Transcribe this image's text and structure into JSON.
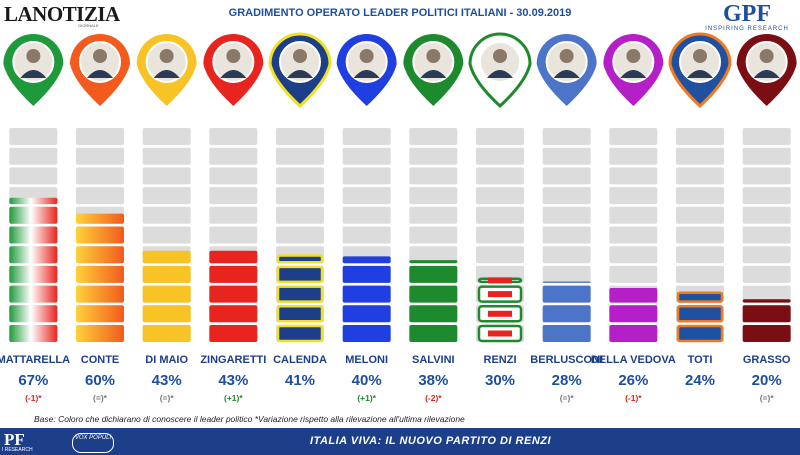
{
  "header": {
    "logo_left_brand": "LANOTIZIA",
    "logo_left_tag": "GIORNALE",
    "title": "GRADIMENTO OPERATO LEADER POLITICI ITALIANI - 30.09.2019",
    "logo_right": "GPF",
    "logo_right_sub": "INSPIRING RESEARCH"
  },
  "chart_data": {
    "type": "bar",
    "title": "GRADIMENTO OPERATO LEADER POLITICI ITALIANI - 30.09.2019",
    "categories": [
      "MATTARELLA",
      "CONTE",
      "DI MAIO",
      "ZINGARETTI",
      "CALENDA",
      "MELONI",
      "SALVINI",
      "RENZI",
      "BERLUSCONI",
      "DELLA VEDOVA",
      "TOTI",
      "GRASSO"
    ],
    "values": [
      67,
      60,
      43,
      43,
      41,
      40,
      38,
      30,
      28,
      26,
      24,
      20
    ],
    "value_labels": [
      "67%",
      "60%",
      "43%",
      "43%",
      "41%",
      "40%",
      "38%",
      "30%",
      "28%",
      "26%",
      "24%",
      "20%"
    ],
    "variations": [
      "(-1)*",
      "(=)*",
      "(=)*",
      "(+1)*",
      "",
      "(+1)*",
      "(-2)*",
      "",
      "(=)*",
      "(-1)*",
      "",
      ""
    ],
    "variations_extra": [
      "",
      "",
      "",
      "",
      "",
      "",
      "",
      "",
      "",
      "",
      "",
      "(=)*"
    ],
    "variation_colors": [
      "#d9221c",
      "#777777",
      "#777777",
      "#1e8a2e",
      "#777777",
      "#1e8a2e",
      "#d9221c",
      "#777777",
      "#777777",
      "#d9221c",
      "#777777",
      "#777777"
    ],
    "colors": [
      "tricolore",
      "#f4a31c",
      "#f7c325",
      "#e8241f",
      "#1d3f8a",
      "#1f3fe0",
      "#1e8a2e",
      "#e8241f",
      "#4c74c9",
      "#b51fc8",
      "#2050a0",
      "#7a0e12"
    ],
    "ylim": [
      0,
      100
    ],
    "grid": false
  },
  "footnote": "Base: Coloro che dichiarano di conoscere il leader politico  *Variazione rispetto alla rilevazione all'ultima rilevazione",
  "bottom": {
    "logo": "PF",
    "logo_sub": "I RESEARCH",
    "vox": "VOX POPULI",
    "headline": "ITALIA VIVA: IL NUOVO PARTITO DI RENZI"
  }
}
